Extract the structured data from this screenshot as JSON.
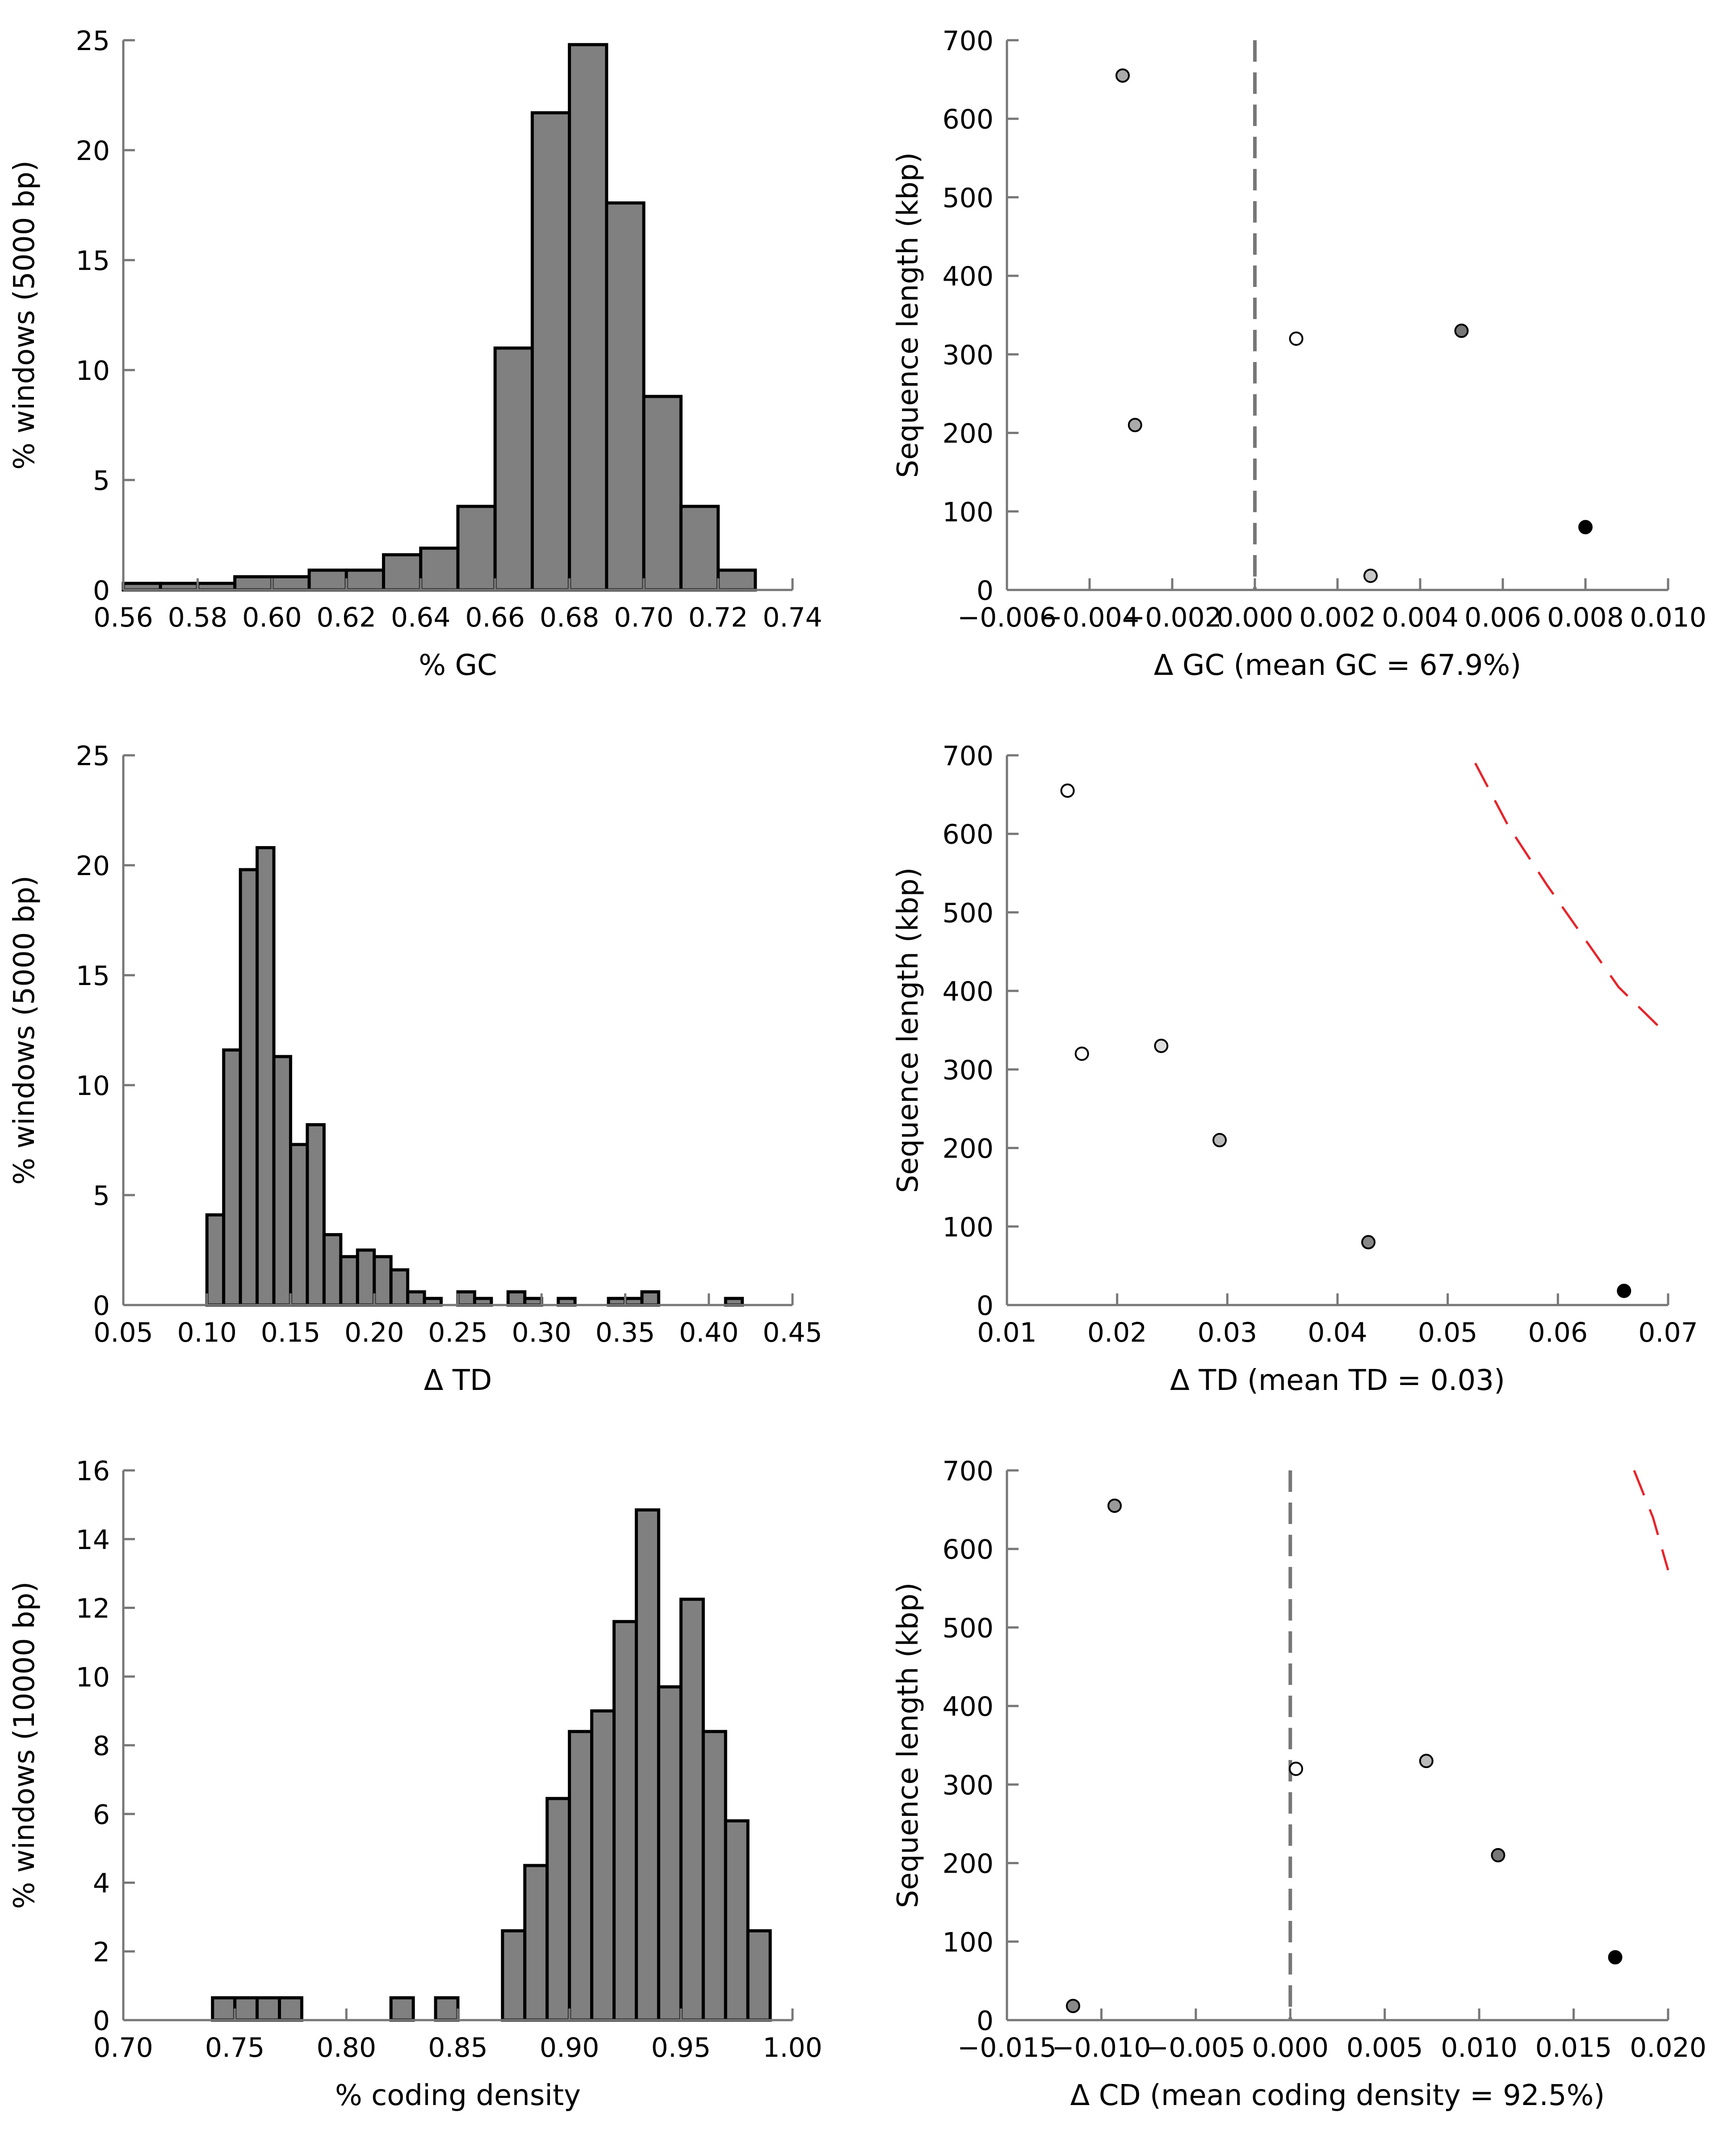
{
  "chart_data": [
    {
      "id": "gc-hist",
      "type": "bar",
      "xlabel": "% GC",
      "ylabel": "% windows (5000 bp)",
      "xlim": [
        0.56,
        0.74
      ],
      "ylim": [
        0,
        25
      ],
      "xticks": [
        "0.56",
        "0.58",
        "0.60",
        "0.62",
        "0.64",
        "0.66",
        "0.68",
        "0.70",
        "0.72",
        "0.74"
      ],
      "yticks": [
        "0",
        "5",
        "10",
        "15",
        "20",
        "25"
      ],
      "bin_edges": [
        0.56,
        0.57,
        0.58,
        0.59,
        0.6,
        0.61,
        0.62,
        0.63,
        0.64,
        0.65,
        0.66,
        0.67,
        0.68,
        0.69,
        0.7,
        0.71,
        0.72,
        0.73
      ],
      "values": [
        0.3,
        0.3,
        0.3,
        0.6,
        0.6,
        0.9,
        0.9,
        1.6,
        1.9,
        3.8,
        11.0,
        21.7,
        24.8,
        17.6,
        8.8,
        3.8,
        0.9
      ]
    },
    {
      "id": "gc-scatter",
      "type": "scatter",
      "xlabel": "Δ GC (mean GC = 67.9%)",
      "ylabel": "Sequence length (kbp)",
      "xlim": [
        -0.006,
        0.01
      ],
      "ylim": [
        0,
        700
      ],
      "xticks": [
        "−0.006",
        "−0.004",
        "−0.002",
        "0.000",
        "0.002",
        "0.004",
        "0.006",
        "0.008",
        "0.010"
      ],
      "yticks": [
        "0",
        "100",
        "200",
        "300",
        "400",
        "500",
        "600",
        "700"
      ],
      "vline_x": 0.0,
      "points": [
        {
          "x": -0.0032,
          "y": 655,
          "color": "#aaaaaa"
        },
        {
          "x": -0.0029,
          "y": 210,
          "color": "#aaaaaa"
        },
        {
          "x": 0.001,
          "y": 320,
          "color": "#ffffff"
        },
        {
          "x": 0.0028,
          "y": 18,
          "color": "#c8c8c8"
        },
        {
          "x": 0.005,
          "y": 330,
          "color": "#777777"
        },
        {
          "x": 0.008,
          "y": 80,
          "color": "#000000"
        }
      ],
      "dashed_curve": []
    },
    {
      "id": "td-hist",
      "type": "bar",
      "xlabel": "Δ TD",
      "ylabel": "% windows (5000 bp)",
      "xlim": [
        0.05,
        0.45
      ],
      "ylim": [
        0,
        25
      ],
      "xticks": [
        "0.05",
        "0.10",
        "0.15",
        "0.20",
        "0.25",
        "0.30",
        "0.35",
        "0.40",
        "0.45"
      ],
      "yticks": [
        "0",
        "5",
        "10",
        "15",
        "20",
        "25"
      ],
      "bin_edges": [
        0.1,
        0.11,
        0.12,
        0.13,
        0.14,
        0.15,
        0.16,
        0.17,
        0.18,
        0.19,
        0.2,
        0.21,
        0.22,
        0.23,
        0.24,
        0.25,
        0.26,
        0.27,
        0.28,
        0.29,
        0.3,
        0.31,
        0.32,
        0.33,
        0.34,
        0.35,
        0.36,
        0.37,
        0.38,
        0.39,
        0.4,
        0.41,
        0.42
      ],
      "values": [
        4.1,
        11.6,
        19.8,
        20.8,
        11.3,
        7.3,
        8.2,
        3.2,
        2.2,
        2.5,
        2.2,
        1.6,
        0.6,
        0.3,
        0,
        0.6,
        0.3,
        0,
        0.6,
        0.3,
        0,
        0.3,
        0,
        0,
        0.3,
        0.3,
        0.6,
        0,
        0,
        0,
        0,
        0.3,
        0.6
      ]
    },
    {
      "id": "td-scatter",
      "type": "scatter",
      "xlabel": "Δ TD (mean TD = 0.03)",
      "ylabel": "Sequence length (kbp)",
      "xlim": [
        0.01,
        0.07
      ],
      "ylim": [
        0,
        700
      ],
      "xticks": [
        "0.01",
        "0.02",
        "0.03",
        "0.04",
        "0.05",
        "0.06",
        "0.07"
      ],
      "yticks": [
        "0",
        "100",
        "200",
        "300",
        "400",
        "500",
        "600",
        "700"
      ],
      "vline_x": null,
      "points": [
        {
          "x": 0.0155,
          "y": 655,
          "color": "#ffffff"
        },
        {
          "x": 0.0168,
          "y": 320,
          "color": "#ffffff"
        },
        {
          "x": 0.024,
          "y": 330,
          "color": "#dddddd"
        },
        {
          "x": 0.0293,
          "y": 210,
          "color": "#bbbbbb"
        },
        {
          "x": 0.0428,
          "y": 80,
          "color": "#888888"
        },
        {
          "x": 0.066,
          "y": 18,
          "color": "#000000"
        }
      ],
      "dashed_curve": [
        [
          0.0525,
          690
        ],
        [
          0.0555,
          610
        ],
        [
          0.059,
          535
        ],
        [
          0.0625,
          465
        ],
        [
          0.0655,
          405
        ],
        [
          0.07,
          343
        ]
      ]
    },
    {
      "id": "cd-hist",
      "type": "bar",
      "xlabel": "% coding density",
      "ylabel": "% windows (10000 bp)",
      "xlim": [
        0.7,
        1.0
      ],
      "ylim": [
        0,
        16
      ],
      "xticks": [
        "0.70",
        "0.75",
        "0.80",
        "0.85",
        "0.90",
        "0.95",
        "1.00"
      ],
      "yticks": [
        "0",
        "2",
        "4",
        "6",
        "8",
        "10",
        "12",
        "14",
        "16"
      ],
      "bin_edges": [
        0.74,
        0.75,
        0.76,
        0.77,
        0.78,
        0.79,
        0.8,
        0.81,
        0.82,
        0.83,
        0.84,
        0.85,
        0.86,
        0.87,
        0.88,
        0.89,
        0.9,
        0.91,
        0.92,
        0.93,
        0.94,
        0.95,
        0.96,
        0.97,
        0.98,
        0.99
      ],
      "values": [
        0.65,
        0.65,
        0.65,
        0.65,
        0,
        0,
        0,
        0,
        0.65,
        0,
        0.65,
        0,
        0,
        2.6,
        4.5,
        6.45,
        8.4,
        9.0,
        11.6,
        14.85,
        9.7,
        12.25,
        8.4,
        5.8,
        2.6
      ]
    },
    {
      "id": "cd-scatter",
      "type": "scatter",
      "xlabel": "Δ CD (mean coding density = 92.5%)",
      "ylabel": "Sequence length (kbp)",
      "xlim": [
        -0.015,
        0.02
      ],
      "ylim": [
        0,
        700
      ],
      "xticks": [
        "−0.015",
        "−0.010",
        "−0.005",
        "0.000",
        "0.005",
        "0.010",
        "0.015",
        "0.020"
      ],
      "yticks": [
        "0",
        "100",
        "200",
        "300",
        "400",
        "500",
        "600",
        "700"
      ],
      "vline_x": 0.0,
      "points": [
        {
          "x": -0.0093,
          "y": 655,
          "color": "#999999"
        },
        {
          "x": 0.0003,
          "y": 320,
          "color": "#ffffff"
        },
        {
          "x": 0.0072,
          "y": 330,
          "color": "#bbbbbb"
        },
        {
          "x": 0.011,
          "y": 210,
          "color": "#777777"
        },
        {
          "x": 0.0172,
          "y": 80,
          "color": "#000000"
        },
        {
          "x": -0.0115,
          "y": 18,
          "color": "#888888"
        }
      ],
      "dashed_curve": [
        [
          0.0182,
          700
        ],
        [
          0.0192,
          640
        ],
        [
          0.02,
          573
        ]
      ]
    }
  ]
}
